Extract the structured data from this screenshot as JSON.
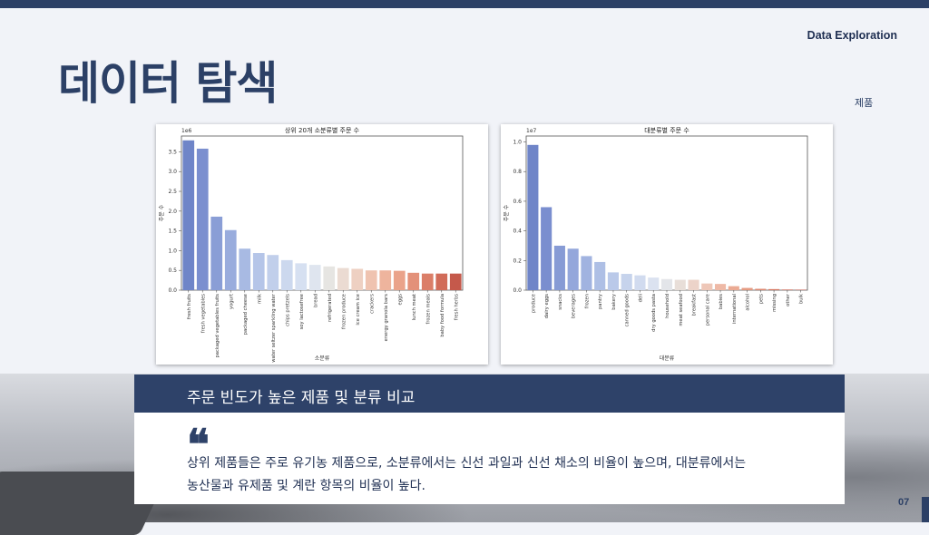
{
  "header": {
    "section": "Data Exploration",
    "title": "데이터 탐색",
    "subtitle": "제품",
    "accent": "#2c4066"
  },
  "banner": {
    "title": "주문 빈도가 높은 제품 및 분류 비교"
  },
  "body": {
    "quote_icon": "quote-icon",
    "line1": "상위 제품들은 주로 유기농 제품으로, 소분류에서는 신선 과일과 신선 채소의 비율이 높으며, 대분류에서는",
    "line2": "농산물과 유제품 및 계란 항목의 비율이 높다."
  },
  "footer": {
    "page": "07"
  },
  "chart_data": [
    {
      "type": "bar",
      "title": "상위 20개 소분류별 주문 수",
      "xlabel": "소분류",
      "ylabel": "주문 수",
      "scale_label": "1e6",
      "ylim": [
        0,
        3.9
      ],
      "yticks": [
        0.0,
        0.5,
        1.0,
        1.5,
        2.0,
        2.5,
        3.0,
        3.5
      ],
      "categories": [
        "fresh fruits",
        "fresh vegetables",
        "packaged vegetables fruits",
        "yogurt",
        "packaged cheese",
        "milk",
        "water seltzer sparkling water",
        "chips pretzels",
        "soy lactosefree",
        "bread",
        "refrigerated",
        "frozen produce",
        "ice cream ice",
        "crackers",
        "energy granola bars",
        "eggs",
        "lunch meat",
        "frozen meals",
        "baby food formula",
        "fresh herbs"
      ],
      "values": [
        3.79,
        3.58,
        1.86,
        1.52,
        1.05,
        0.94,
        0.89,
        0.76,
        0.68,
        0.64,
        0.6,
        0.56,
        0.54,
        0.5,
        0.5,
        0.49,
        0.44,
        0.42,
        0.42,
        0.42
      ],
      "colors": [
        "#6f85c8",
        "#7b8fcf",
        "#8a9ed6",
        "#99acdd",
        "#a8bae3",
        "#b5c5e8",
        "#c1cfeb",
        "#ccd8ee",
        "#d6e0f1",
        "#dfe5ef",
        "#e6e5e2",
        "#ebdbd2",
        "#eed0c2",
        "#efc3b0",
        "#eeb49d",
        "#eaa38a",
        "#e39179",
        "#db7e68",
        "#d16c59",
        "#c5594b"
      ]
    },
    {
      "type": "bar",
      "title": "대분류별 주문 수",
      "xlabel": "대분류",
      "ylabel": "주문 수",
      "scale_label": "1e7",
      "ylim": [
        0,
        1.04
      ],
      "yticks": [
        0.0,
        0.2,
        0.4,
        0.6,
        0.8,
        1.0
      ],
      "categories": [
        "produce",
        "dairy eggs",
        "snacks",
        "beverages",
        "frozen",
        "pantry",
        "bakery",
        "canned goods",
        "deli",
        "dry goods pasta",
        "household",
        "meat seafood",
        "breakfast",
        "personal care",
        "babies",
        "international",
        "alcohol",
        "pets",
        "missing",
        "other",
        "bulk"
      ],
      "values": [
        0.98,
        0.56,
        0.3,
        0.28,
        0.23,
        0.19,
        0.12,
        0.11,
        0.1,
        0.085,
        0.075,
        0.07,
        0.07,
        0.045,
        0.042,
        0.027,
        0.015,
        0.009,
        0.007,
        0.004,
        0.003
      ],
      "colors": [
        "#6f85c8",
        "#7a8ecf",
        "#879bd5",
        "#94a7db",
        "#a1b3e0",
        "#aebfe5",
        "#bac9e9",
        "#c6d3ec",
        "#d1dbef",
        "#dbe2f0",
        "#e3e5e9",
        "#e8ded8",
        "#ecd3c9",
        "#eec7b8",
        "#eeb9a6",
        "#ebaa93",
        "#e59a81",
        "#de8870",
        "#d57660",
        "#cb6452",
        "#c15345"
      ]
    }
  ]
}
